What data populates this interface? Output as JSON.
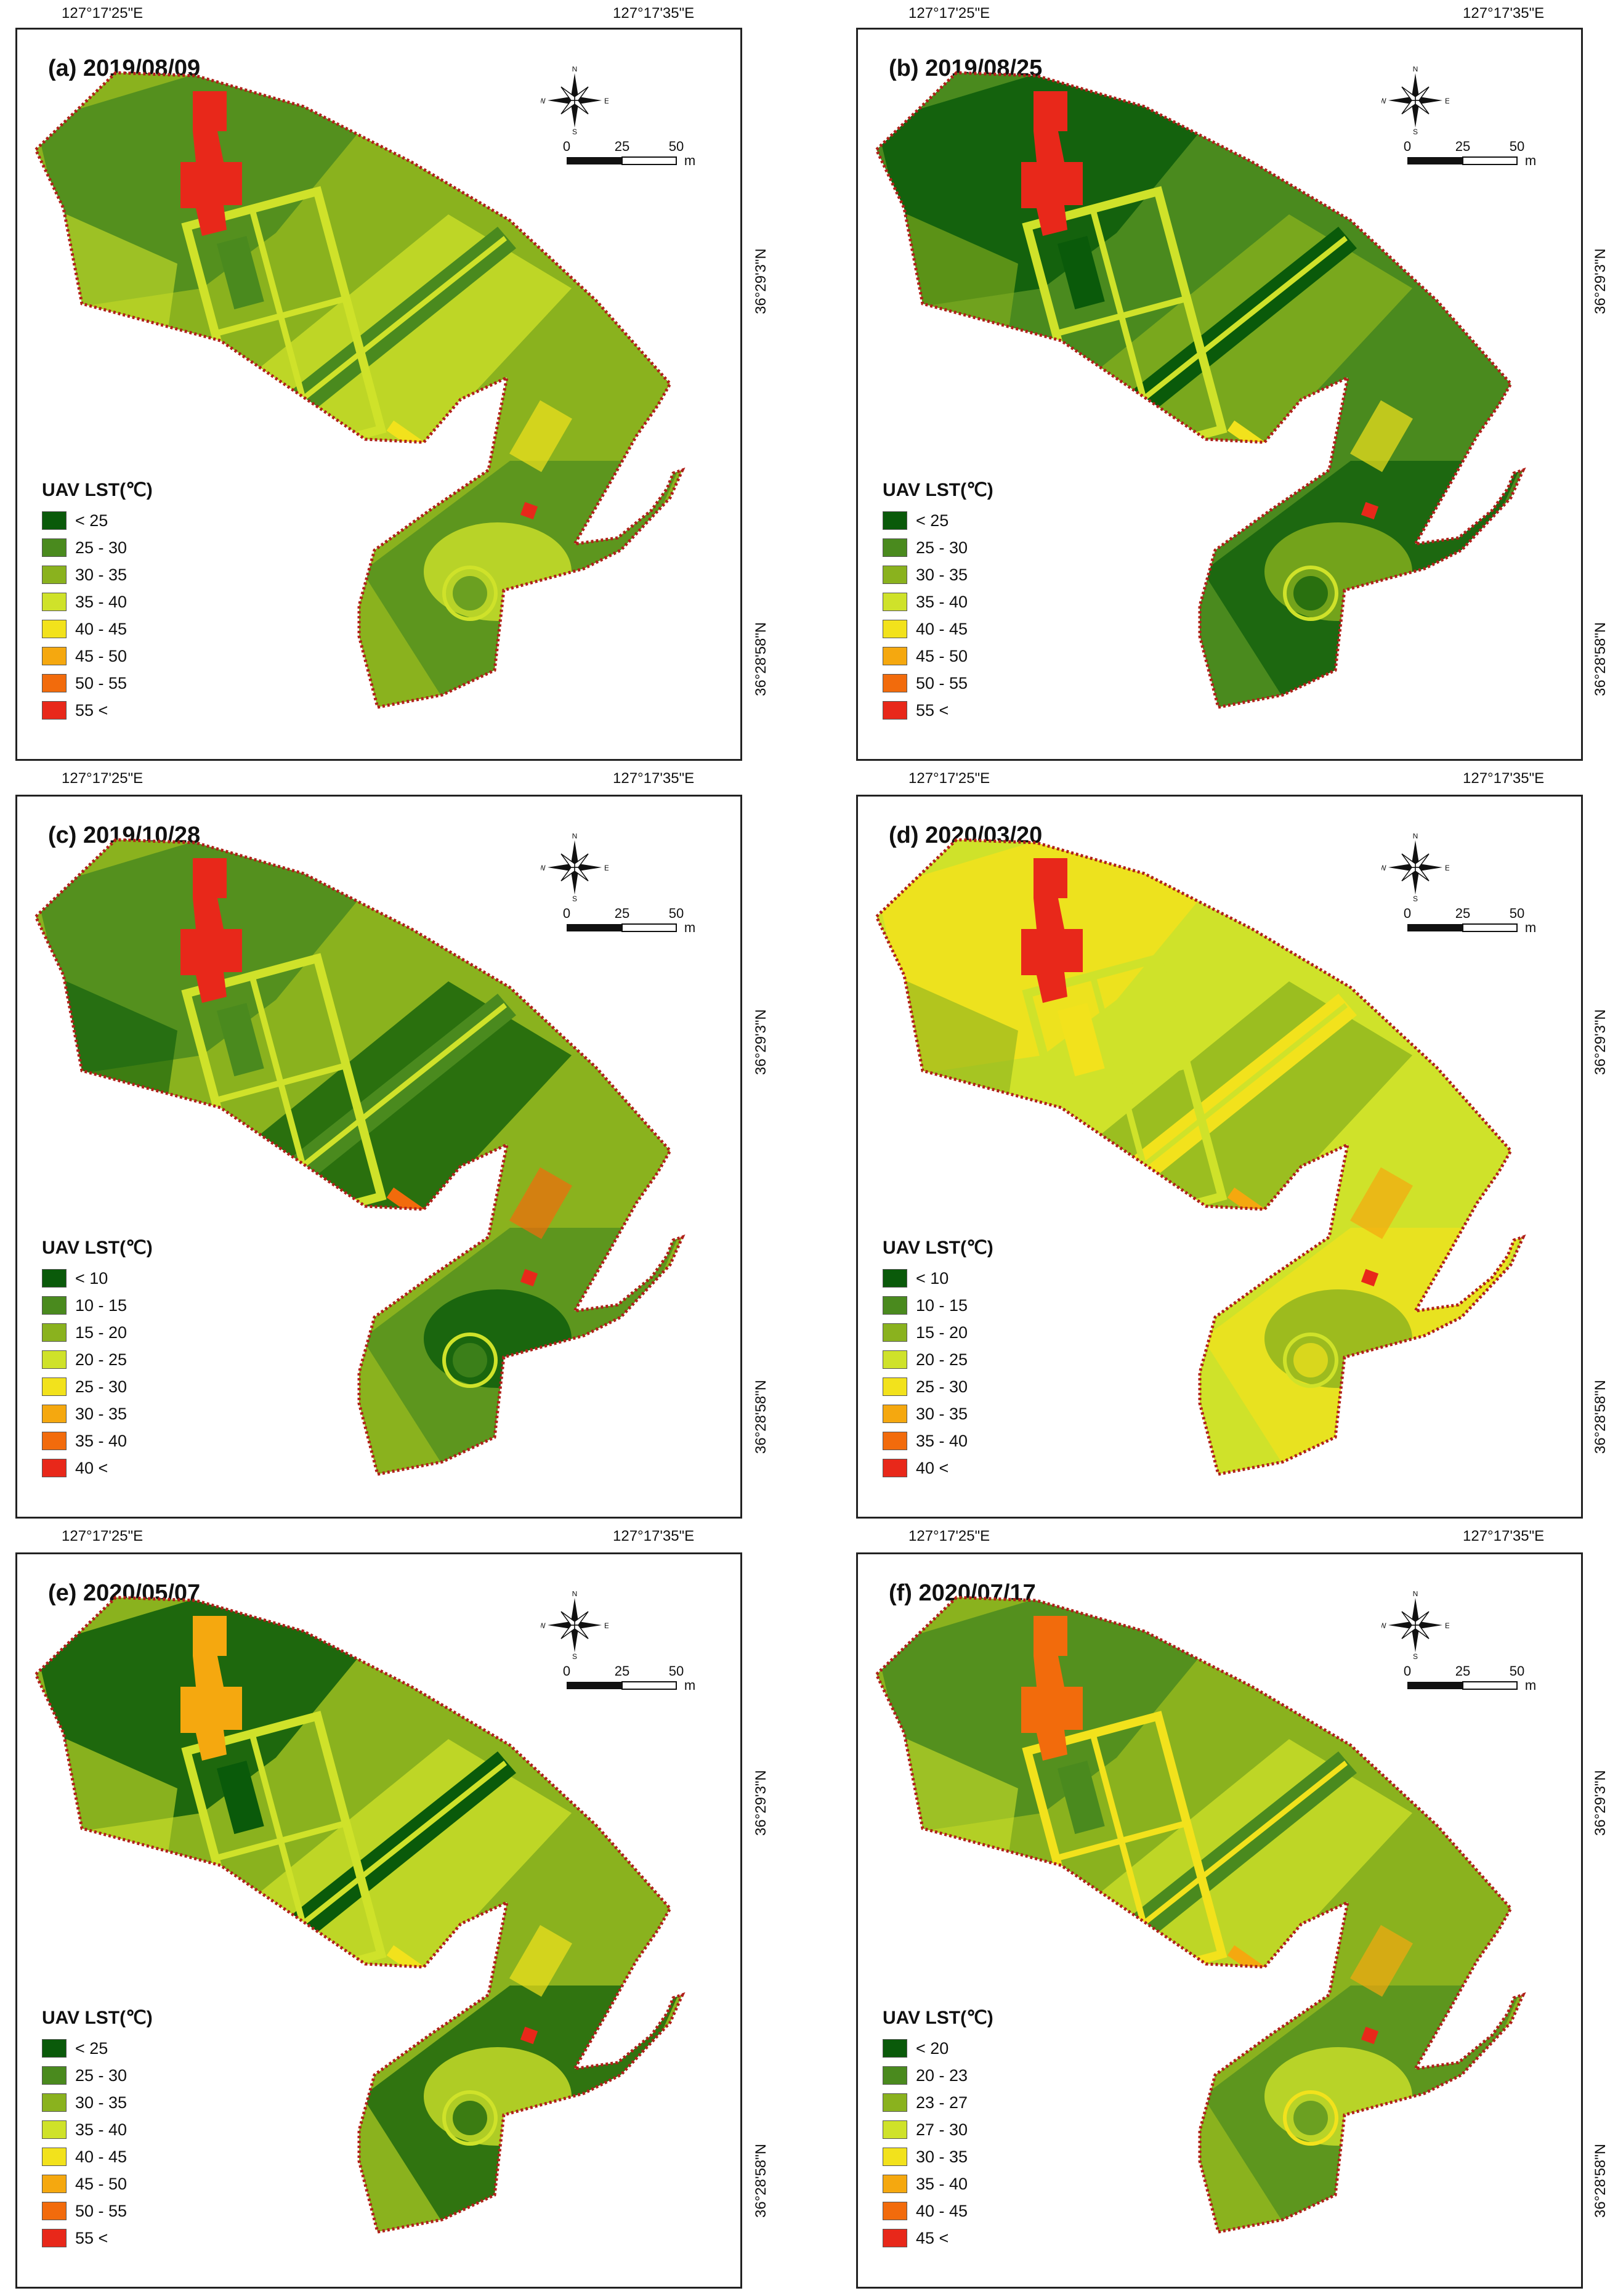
{
  "coords": {
    "lon_left": "127°17'25\"E",
    "lon_right": "127°17'35\"E",
    "lat_top": "36°29'3\"N",
    "lat_bottom": "36°28'58\"N"
  },
  "compass": {
    "n": "N",
    "s": "S",
    "e": "E",
    "w": "W"
  },
  "scalebar": {
    "zero": "0",
    "mid": "25",
    "max": "50",
    "unit": "m"
  },
  "legend_title": "UAV LST(℃)",
  "colors": {
    "c0": "#0a5a0a",
    "c1": "#4a8a1e",
    "c2": "#8ab21e",
    "c3": "#cfe22a",
    "c4": "#f2e21c",
    "c5": "#f5a80f",
    "c6": "#f26b0c",
    "c7": "#e8281a",
    "boundary": "#b0201a"
  },
  "panels": [
    {
      "title": "(a) 2019/08/09",
      "legend": [
        "< 25",
        "25 - 30",
        "30 - 35",
        "35 - 40",
        "40 - 45",
        "45 - 50",
        "50 - 55",
        "55 <"
      ]
    },
    {
      "title": "(b) 2019/08/25",
      "legend": [
        "< 25",
        "25 - 30",
        "30 - 35",
        "35 - 40",
        "40 - 45",
        "45 - 50",
        "50 - 55",
        "55 <"
      ]
    },
    {
      "title": "(c) 2019/10/28",
      "legend": [
        "< 10",
        "10 - 15",
        "15 - 20",
        "20 - 25",
        "25 - 30",
        "30 - 35",
        "35 - 40",
        "40 <"
      ]
    },
    {
      "title": "(d) 2020/03/20",
      "legend": [
        "< 10",
        "10 - 15",
        "15 - 20",
        "20 - 25",
        "25 - 30",
        "30 - 35",
        "35 - 40",
        "40 <"
      ]
    },
    {
      "title": "(e) 2020/05/07",
      "legend": [
        "< 25",
        "25 - 30",
        "30 - 35",
        "35 - 40",
        "40 - 45",
        "45 - 50",
        "50 - 55",
        "55 <"
      ]
    },
    {
      "title": "(f) 2020/07/17",
      "legend": [
        "< 20",
        "20 - 23",
        "23 - 27",
        "27 - 30",
        "30 - 35",
        "35 - 40",
        "40 - 45",
        "45 <"
      ]
    }
  ]
}
